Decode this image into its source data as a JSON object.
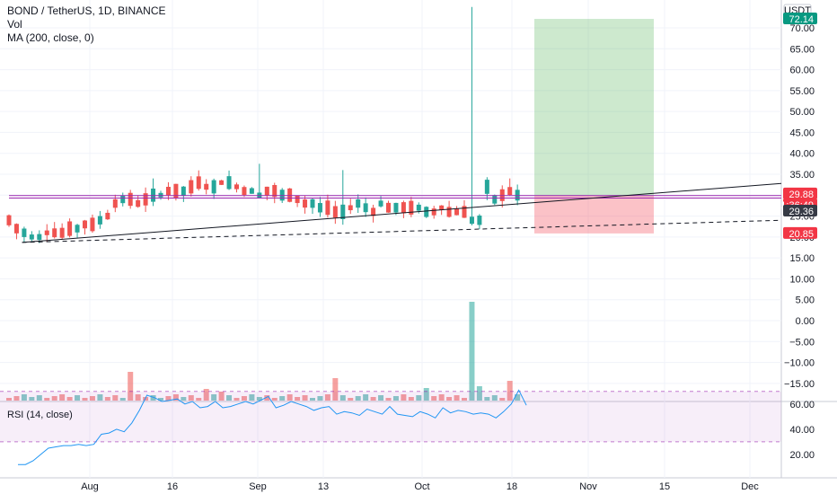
{
  "header": {
    "title": "BOND / TetherUS, 1D, BINANCE",
    "vol_label": "Vol",
    "ma_label": "MA (200, close, 0)",
    "rsi_label": "RSI (14, close)"
  },
  "price_axis": {
    "currency": "USDT",
    "ticks": [
      "70.00",
      "65.00",
      "60.00",
      "55.00",
      "50.00",
      "45.00",
      "40.00",
      "35.00",
      "30.00",
      "25.00",
      "20.00",
      "15.00",
      "10.00",
      "5.00",
      "0.00",
      "−5.00",
      "−10.00",
      "−15.00"
    ],
    "badges": [
      {
        "text": "72.14",
        "color": "#089981"
      },
      {
        "text": "29.88",
        "color": "#f23645"
      },
      {
        "text": "11:36:49",
        "color": "#f23645"
      },
      {
        "text": "29.36",
        "color": "#363a45"
      },
      {
        "text": "20.85",
        "color": "#f23645"
      }
    ]
  },
  "rsi_axis": {
    "ticks": [
      "60.00",
      "40.00",
      "20.00"
    ]
  },
  "time_axis": {
    "labels": [
      "Aug",
      "16",
      "Sep",
      "13",
      "Oct",
      "18",
      "Nov",
      "15",
      "Dec"
    ]
  },
  "colors": {
    "up": "#26a69a",
    "down": "#ef5350",
    "rsi": "#2196f3",
    "rsi_band": "#9c27b0",
    "hline": "#9c27b0",
    "trend": "#131722"
  },
  "chart_data": [
    {
      "type": "candlestick",
      "name": "price",
      "x_range": [
        "Jul 20",
        "Dec 5"
      ],
      "y_range": [
        -19,
        76
      ],
      "candle_count": 68,
      "tall_spike": {
        "x": "Oct 15",
        "high": 75
      },
      "last_close": 29.36,
      "horizontal_lines": [
        29.9,
        29.3
      ],
      "trendlines": [
        {
          "style": "solid",
          "from": [
            1,
            18.7
          ],
          "to": [
            88,
            32.8
          ]
        },
        {
          "style": "dashed",
          "from": [
            1,
            18.7
          ],
          "to": [
            88,
            24.0
          ]
        }
      ],
      "position_tool": {
        "entry": 29.88,
        "target": 72.14,
        "stop": 20.85
      }
    },
    {
      "type": "bar",
      "name": "Vol",
      "values": [
        1,
        1,
        1,
        1,
        1,
        1,
        1,
        1,
        1,
        1,
        1,
        1,
        1,
        1,
        1,
        1,
        2,
        1,
        1,
        1,
        1,
        1,
        1,
        1,
        1,
        1,
        1,
        1,
        1,
        1,
        1,
        1,
        1,
        1,
        1,
        1,
        1,
        1,
        1,
        1,
        1,
        1,
        1,
        1,
        1,
        1,
        1,
        1,
        1,
        1,
        1,
        1,
        1,
        1,
        1,
        1,
        1,
        1,
        1,
        1,
        1,
        1,
        1,
        1,
        1,
        1,
        1,
        1
      ]
    },
    {
      "type": "line",
      "name": "RSI (14, close)",
      "ylim": [
        10,
        72
      ],
      "band": [
        30,
        70
      ],
      "values": [
        12,
        12,
        15,
        20,
        25,
        26,
        27,
        27,
        28,
        27,
        28,
        36,
        37,
        40,
        38,
        45,
        55,
        67,
        65,
        62,
        63,
        64,
        60,
        62,
        57,
        58,
        62,
        57,
        58,
        60,
        62,
        60,
        63,
        66,
        57,
        59,
        62,
        60,
        58,
        55,
        57,
        58,
        52,
        54,
        53,
        51,
        56,
        54,
        52,
        58,
        52,
        51,
        50,
        54,
        52,
        49,
        57,
        53,
        55,
        54,
        52,
        53,
        52,
        49,
        54,
        60,
        71,
        59
      ]
    }
  ]
}
